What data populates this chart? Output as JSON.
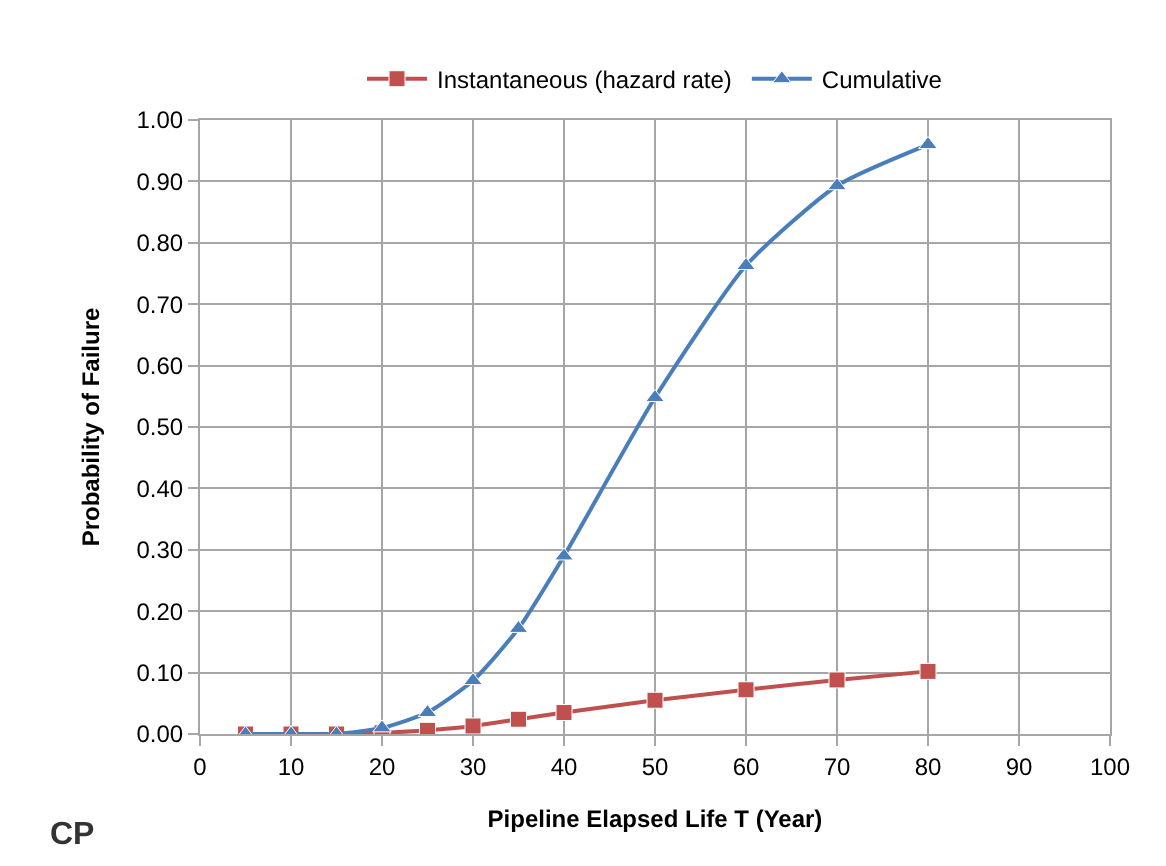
{
  "chart_data": {
    "type": "line",
    "xlabel": "Pipeline Elapsed Life T (Year)",
    "ylabel": "Probability of Failure",
    "x": [
      5,
      10,
      15,
      20,
      25,
      30,
      35,
      40,
      50,
      60,
      70,
      80
    ],
    "series": [
      {
        "name": "Instantaneous (hazard rate)",
        "color": "#c0504d",
        "marker": "square",
        "values": [
          0.0,
          0.0,
          0.0,
          0.002,
          0.006,
          0.013,
          0.024,
          0.035,
          0.055,
          0.072,
          0.088,
          0.102
        ]
      },
      {
        "name": "Cumulative",
        "color": "#4a7ebb",
        "marker": "triangle",
        "values": [
          0.0,
          0.0,
          0.0,
          0.01,
          0.035,
          0.087,
          0.172,
          0.29,
          0.548,
          0.763,
          0.893,
          0.96
        ]
      }
    ],
    "xlim": [
      0,
      100
    ],
    "xticks": [
      0,
      10,
      20,
      30,
      40,
      50,
      60,
      70,
      80,
      90,
      100
    ],
    "ylim": [
      0,
      1
    ],
    "yticks": [
      {
        "value": 0,
        "label": "0.00"
      },
      {
        "value": 0.1,
        "label": "0.10"
      },
      {
        "value": 0.2,
        "label": "0.20"
      },
      {
        "value": 0.3,
        "label": "0.30"
      },
      {
        "value": 0.4,
        "label": "0.40"
      },
      {
        "value": 0.5,
        "label": "0.50"
      },
      {
        "value": 0.6,
        "label": "0.60"
      },
      {
        "value": 0.7,
        "label": "0.70"
      },
      {
        "value": 0.8,
        "label": "0.80"
      },
      {
        "value": 0.9,
        "label": "0.90"
      },
      {
        "value": 1,
        "label": "1.00"
      }
    ],
    "grid": true,
    "legend": "top",
    "line_style": "solid",
    "annotations": [
      "CP"
    ]
  }
}
